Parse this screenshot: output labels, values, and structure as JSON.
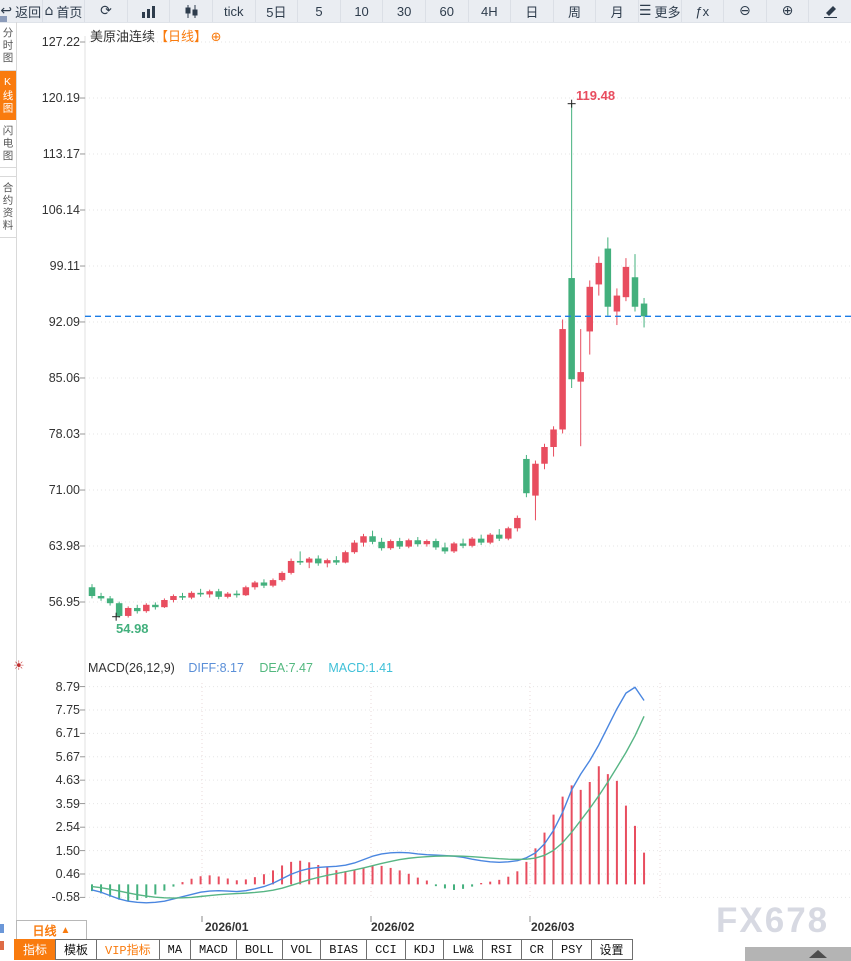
{
  "toolbar": {
    "items": [
      {
        "name": "back",
        "icon": "back-arrow-icon",
        "label": "返回"
      },
      {
        "name": "home",
        "icon": "home-icon",
        "label": "首页"
      },
      {
        "name": "refresh",
        "icon": "refresh-icon",
        "label": ""
      },
      {
        "name": "bar-chart",
        "icon": "bar-chart-icon",
        "label": ""
      },
      {
        "name": "candlestick",
        "icon": "candlestick-icon",
        "label": ""
      },
      {
        "name": "tick",
        "label": "tick"
      },
      {
        "name": "period-5d",
        "label": "5日"
      },
      {
        "name": "period-5",
        "label": "5"
      },
      {
        "name": "period-10",
        "label": "10"
      },
      {
        "name": "period-30",
        "label": "30"
      },
      {
        "name": "period-60",
        "label": "60"
      },
      {
        "name": "period-4h",
        "label": "4H"
      },
      {
        "name": "period-day",
        "label": "日"
      },
      {
        "name": "period-week",
        "label": "周"
      },
      {
        "name": "period-month",
        "label": "月"
      },
      {
        "name": "more",
        "icon": "menu-icon",
        "label": "更多"
      },
      {
        "name": "indicator-fx",
        "label": "ƒx"
      },
      {
        "name": "zoom-out",
        "icon": "zoom-out-icon",
        "label": ""
      },
      {
        "name": "zoom-in",
        "icon": "zoom-in-icon",
        "label": ""
      },
      {
        "name": "draw",
        "icon": "pencil-icon",
        "label": ""
      }
    ]
  },
  "sidebar": {
    "items": [
      {
        "label": "分时图",
        "active": false
      },
      {
        "label": "K线图",
        "active": true
      },
      {
        "label": "闪电图",
        "active": false
      },
      {
        "label": "合约资料",
        "active": false,
        "gap": true
      }
    ]
  },
  "chart_header": {
    "symbol": "美原油连续",
    "period_tag": "【日线】",
    "expand_icon": "⊕"
  },
  "macd_header": {
    "formula": "MACD(26,12,9)",
    "diff": "DIFF:8.17",
    "dea": "DEA:7.47",
    "macd": "MACD:1.41"
  },
  "bottom": {
    "period_tab": {
      "label": "日线",
      "arrow": "▲"
    },
    "tabs": [
      {
        "label": "指标",
        "style": "active"
      },
      {
        "label": "模板"
      },
      {
        "label": "VIP指标",
        "style": "vip"
      },
      {
        "label": "MA"
      },
      {
        "label": "MACD"
      },
      {
        "label": "BOLL"
      },
      {
        "label": "VOL"
      },
      {
        "label": "BIAS"
      },
      {
        "label": "CCI"
      },
      {
        "label": "KDJ"
      },
      {
        "label": "LW&"
      },
      {
        "label": "RSI"
      },
      {
        "label": "CR"
      },
      {
        "label": "PSY"
      },
      {
        "label": "设置"
      }
    ]
  },
  "watermark": "FX678",
  "chart_data": {
    "type": "candlestick+macd",
    "symbol": "美原油连续",
    "period": "日线",
    "price_axis": [
      127.22,
      120.19,
      113.17,
      106.14,
      99.11,
      92.09,
      85.06,
      78.03,
      71.0,
      63.98,
      56.95
    ],
    "x_labels": [
      "2026/01",
      "2026/02",
      "2026/03"
    ],
    "annotations": {
      "high": "119.48",
      "low": "54.98"
    },
    "price_line_value": 92.8,
    "colors": {
      "up": "#e84d5f",
      "down": "#43b07d",
      "diff_line": "#4a86e0",
      "dea_line": "#57b584",
      "price_line": "#1b7ce6"
    },
    "candles": [
      [
        58.8,
        59.2,
        57.4,
        57.7
      ],
      [
        57.7,
        58.1,
        57.1,
        57.4
      ],
      [
        57.4,
        57.7,
        56.5,
        56.8
      ],
      [
        56.8,
        57.0,
        54.98,
        55.2
      ],
      [
        55.2,
        56.4,
        55.0,
        56.2
      ],
      [
        56.2,
        56.6,
        55.5,
        55.8
      ],
      [
        55.8,
        56.8,
        55.6,
        56.6
      ],
      [
        56.6,
        56.9,
        56.0,
        56.3
      ],
      [
        56.3,
        57.4,
        56.2,
        57.2
      ],
      [
        57.2,
        57.9,
        56.9,
        57.7
      ],
      [
        57.7,
        58.1,
        57.2,
        57.5
      ],
      [
        57.5,
        58.3,
        57.3,
        58.1
      ],
      [
        58.1,
        58.6,
        57.6,
        57.9
      ],
      [
        57.9,
        58.5,
        57.5,
        58.3
      ],
      [
        58.3,
        58.6,
        57.3,
        57.6
      ],
      [
        57.6,
        58.2,
        57.4,
        58.0
      ],
      [
        58.0,
        58.4,
        57.5,
        57.8
      ],
      [
        57.8,
        59.0,
        57.7,
        58.8
      ],
      [
        58.8,
        59.6,
        58.5,
        59.4
      ],
      [
        59.4,
        59.8,
        58.7,
        59.0
      ],
      [
        59.0,
        59.9,
        58.8,
        59.7
      ],
      [
        59.7,
        60.8,
        59.5,
        60.6
      ],
      [
        60.6,
        62.4,
        60.4,
        62.1
      ],
      [
        62.1,
        63.3,
        61.6,
        61.9
      ],
      [
        61.9,
        62.6,
        61.2,
        62.4
      ],
      [
        62.4,
        62.8,
        61.5,
        61.8
      ],
      [
        61.8,
        62.4,
        61.3,
        62.2
      ],
      [
        62.2,
        62.7,
        61.6,
        61.9
      ],
      [
        61.9,
        63.4,
        61.8,
        63.2
      ],
      [
        63.2,
        64.7,
        63.0,
        64.4
      ],
      [
        64.4,
        65.5,
        63.9,
        65.2
      ],
      [
        65.2,
        65.9,
        64.2,
        64.5
      ],
      [
        64.5,
        65.0,
        63.4,
        63.7
      ],
      [
        63.7,
        64.8,
        63.5,
        64.6
      ],
      [
        64.6,
        65.0,
        63.6,
        63.9
      ],
      [
        63.9,
        64.9,
        63.7,
        64.7
      ],
      [
        64.7,
        65.1,
        63.9,
        64.2
      ],
      [
        64.2,
        64.8,
        63.9,
        64.6
      ],
      [
        64.6,
        64.9,
        63.5,
        63.8
      ],
      [
        63.8,
        64.4,
        63.0,
        63.3
      ],
      [
        63.3,
        64.5,
        63.1,
        64.3
      ],
      [
        64.3,
        64.9,
        63.7,
        64.0
      ],
      [
        64.0,
        65.1,
        63.8,
        64.9
      ],
      [
        64.9,
        65.4,
        64.1,
        64.4
      ],
      [
        64.4,
        65.6,
        64.2,
        65.4
      ],
      [
        65.4,
        66.1,
        64.6,
        64.9
      ],
      [
        64.9,
        66.4,
        64.7,
        66.2
      ],
      [
        66.2,
        67.8,
        65.8,
        67.5
      ],
      [
        74.9,
        75.4,
        70.1,
        70.6
      ],
      [
        70.3,
        74.7,
        67.2,
        74.3
      ],
      [
        74.3,
        76.8,
        73.6,
        76.4
      ],
      [
        76.4,
        79.0,
        75.2,
        78.6
      ],
      [
        78.6,
        92.4,
        78.1,
        91.2
      ],
      [
        97.6,
        119.48,
        83.8,
        84.9
      ],
      [
        84.6,
        91.2,
        76.5,
        85.8
      ],
      [
        90.9,
        97.3,
        88.0,
        96.5
      ],
      [
        96.8,
        100.3,
        95.4,
        99.5
      ],
      [
        101.3,
        102.7,
        92.9,
        94.0
      ],
      [
        93.4,
        96.3,
        91.7,
        95.4
      ],
      [
        95.2,
        100.1,
        94.7,
        99.0
      ],
      [
        97.7,
        100.6,
        93.4,
        94.0
      ],
      [
        94.4,
        95.1,
        91.4,
        92.8
      ]
    ],
    "macd": {
      "axis": [
        8.79,
        7.75,
        6.71,
        5.67,
        4.63,
        3.59,
        2.54,
        1.5,
        0.46,
        -0.58
      ],
      "diff": [
        -0.25,
        -0.35,
        -0.5,
        -0.65,
        -0.75,
        -0.8,
        -0.82,
        -0.8,
        -0.75,
        -0.65,
        -0.55,
        -0.45,
        -0.35,
        -0.3,
        -0.28,
        -0.3,
        -0.32,
        -0.28,
        -0.2,
        -0.1,
        0.05,
        0.25,
        0.45,
        0.6,
        0.7,
        0.75,
        0.78,
        0.8,
        0.85,
        0.95,
        1.1,
        1.25,
        1.35,
        1.4,
        1.42,
        1.4,
        1.35,
        1.32,
        1.3,
        1.28,
        1.25,
        1.2,
        1.12,
        1.05,
        1.0,
        0.98,
        1.0,
        1.05,
        1.18,
        1.4,
        1.8,
        2.4,
        3.2,
        4.2,
        4.9,
        5.5,
        6.2,
        7.0,
        7.8,
        8.5,
        8.76,
        8.17
      ],
      "dea": [
        -0.1,
        -0.15,
        -0.22,
        -0.3,
        -0.38,
        -0.46,
        -0.52,
        -0.57,
        -0.6,
        -0.61,
        -0.6,
        -0.58,
        -0.54,
        -0.5,
        -0.46,
        -0.43,
        -0.41,
        -0.39,
        -0.36,
        -0.32,
        -0.26,
        -0.17,
        -0.05,
        0.08,
        0.2,
        0.31,
        0.4,
        0.48,
        0.56,
        0.64,
        0.73,
        0.83,
        0.93,
        1.02,
        1.1,
        1.16,
        1.2,
        1.23,
        1.25,
        1.26,
        1.26,
        1.25,
        1.23,
        1.2,
        1.17,
        1.14,
        1.12,
        1.11,
        1.12,
        1.17,
        1.29,
        1.51,
        1.85,
        2.32,
        2.84,
        3.37,
        3.94,
        4.55,
        5.2,
        5.86,
        6.6,
        7.47
      ],
      "hist": [
        -0.3,
        -0.4,
        -0.55,
        -0.68,
        -0.74,
        -0.7,
        -0.6,
        -0.45,
        -0.28,
        -0.1,
        0.1,
        0.25,
        0.36,
        0.4,
        0.35,
        0.26,
        0.18,
        0.22,
        0.32,
        0.45,
        0.62,
        0.84,
        1.0,
        1.05,
        0.98,
        0.86,
        0.75,
        0.63,
        0.58,
        0.63,
        0.75,
        0.84,
        0.82,
        0.73,
        0.62,
        0.47,
        0.3,
        0.17,
        -0.08,
        -0.18,
        -0.25,
        -0.2,
        -0.1,
        0.06,
        0.12,
        0.2,
        0.34,
        0.58,
        1.0,
        1.6,
        2.3,
        3.1,
        3.9,
        4.4,
        4.2,
        4.55,
        5.25,
        4.9,
        4.6,
        3.5,
        2.6,
        1.41
      ]
    }
  }
}
